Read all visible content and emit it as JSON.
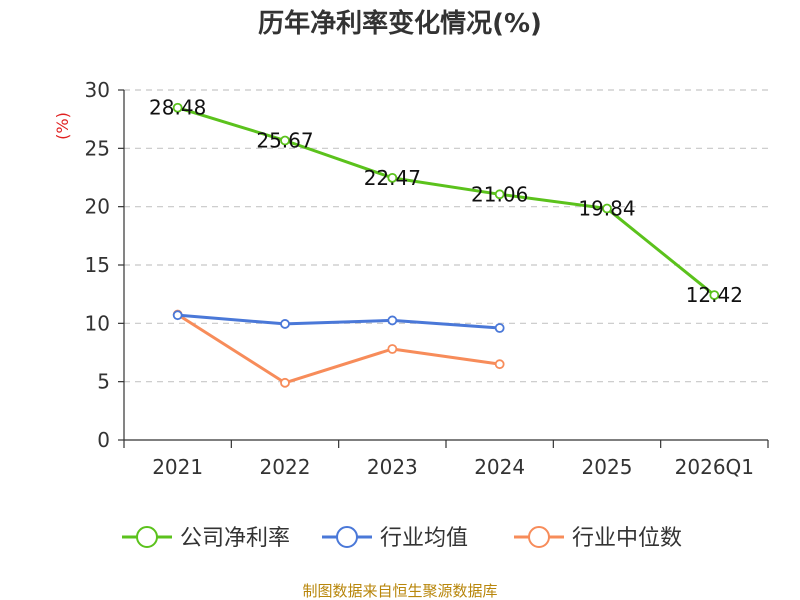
{
  "chart_data": {
    "type": "line",
    "title": "历年净利率变化情况(%)",
    "ylabel": "(%)",
    "xlabel": "",
    "categories": [
      "2021",
      "2022",
      "2023",
      "2024",
      "2025",
      "2026Q1"
    ],
    "ylim": [
      0,
      30
    ],
    "yticks": [
      "0",
      "5",
      "10",
      "15",
      "20",
      "25",
      "30"
    ],
    "grid": true,
    "legend_position": "bottom",
    "series": [
      {
        "name": "公司净利率",
        "color": "#5bc21c",
        "values": [
          28.48,
          25.67,
          22.47,
          21.06,
          19.84,
          12.42
        ],
        "labels": [
          "28.48",
          "25.67",
          "22.47",
          "21.06",
          "19.84",
          "12.42"
        ]
      },
      {
        "name": "行业均值",
        "color": "#4a78d8",
        "values": [
          10.7,
          9.95,
          10.25,
          9.6,
          null,
          null
        ]
      },
      {
        "name": "行业中位数",
        "color": "#f78c5a",
        "values": [
          10.75,
          4.9,
          7.8,
          6.5,
          null,
          null
        ]
      }
    ]
  },
  "source_note": "制图数据来自恒生聚源数据库"
}
